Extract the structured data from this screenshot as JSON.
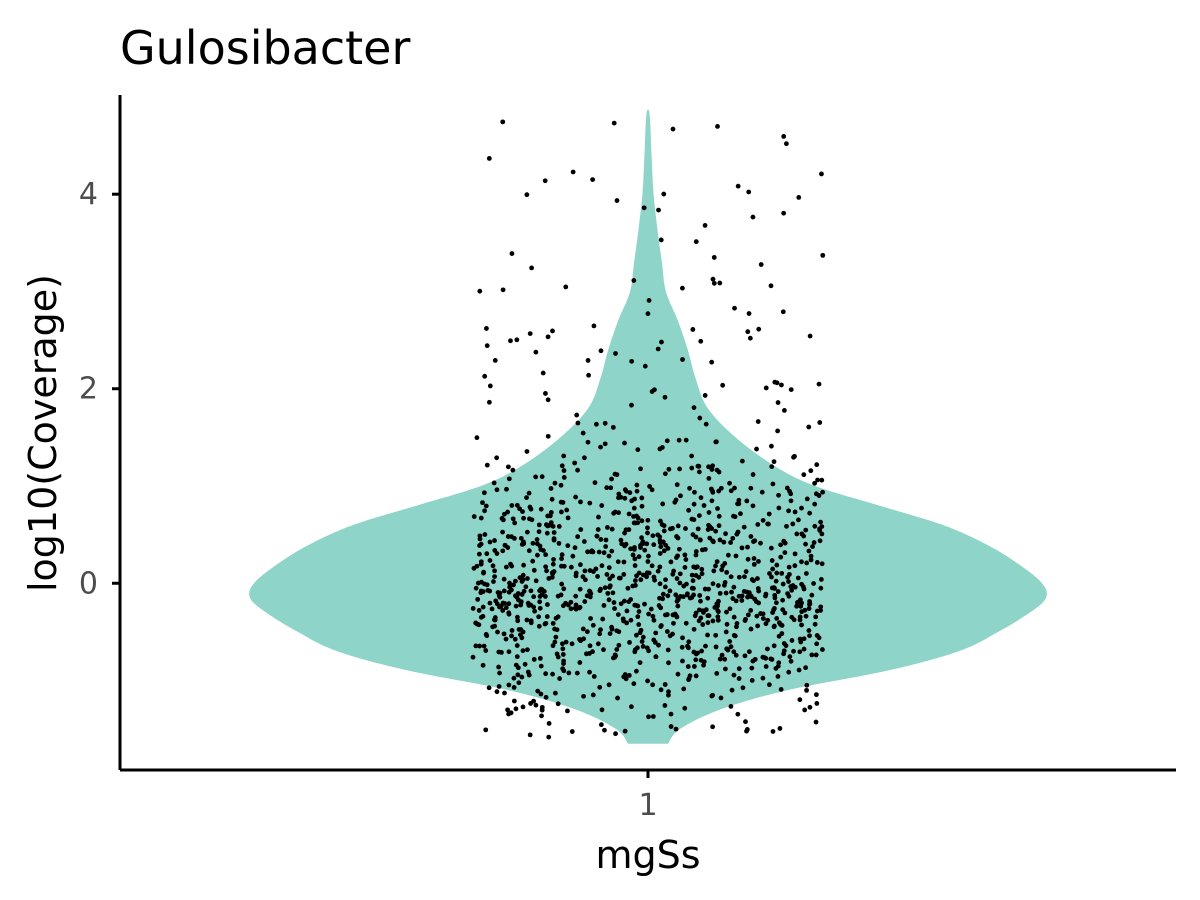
{
  "chart_data": {
    "type": "violin",
    "title": "Gulosibacter",
    "xlabel": "mgSs",
    "ylabel": "log10(Coverage)",
    "categories": [
      "1"
    ],
    "y_ticks": [
      0,
      2,
      4
    ],
    "ylim": [
      -1.92,
      5.02
    ],
    "grid": false,
    "legend": "none",
    "fill_color": "#8fd4c9",
    "point_color": "#000000",
    "violin": {
      "min": -1.65,
      "max": 4.82,
      "density_profile": [
        [
          -1.65,
          0.05
        ],
        [
          -1.5,
          0.08
        ],
        [
          -1.3,
          0.18
        ],
        [
          -1.1,
          0.35
        ],
        [
          -0.9,
          0.6
        ],
        [
          -0.7,
          0.78
        ],
        [
          -0.5,
          0.88
        ],
        [
          -0.3,
          0.96
        ],
        [
          -0.15,
          1.0
        ],
        [
          0.0,
          0.99
        ],
        [
          0.2,
          0.93
        ],
        [
          0.4,
          0.85
        ],
        [
          0.6,
          0.74
        ],
        [
          0.8,
          0.58
        ],
        [
          1.0,
          0.42
        ],
        [
          1.2,
          0.32
        ],
        [
          1.5,
          0.22
        ],
        [
          1.8,
          0.15
        ],
        [
          2.1,
          0.12
        ],
        [
          2.4,
          0.1
        ],
        [
          2.7,
          0.075
        ],
        [
          3.0,
          0.045
        ],
        [
          3.3,
          0.035
        ],
        [
          3.6,
          0.025
        ],
        [
          4.0,
          0.014
        ],
        [
          4.4,
          0.009
        ],
        [
          4.82,
          0.004
        ]
      ]
    },
    "points": {
      "count": 1200,
      "jitter_width": 0.44,
      "distribution": "approximate sample drawn from the violin density"
    }
  }
}
